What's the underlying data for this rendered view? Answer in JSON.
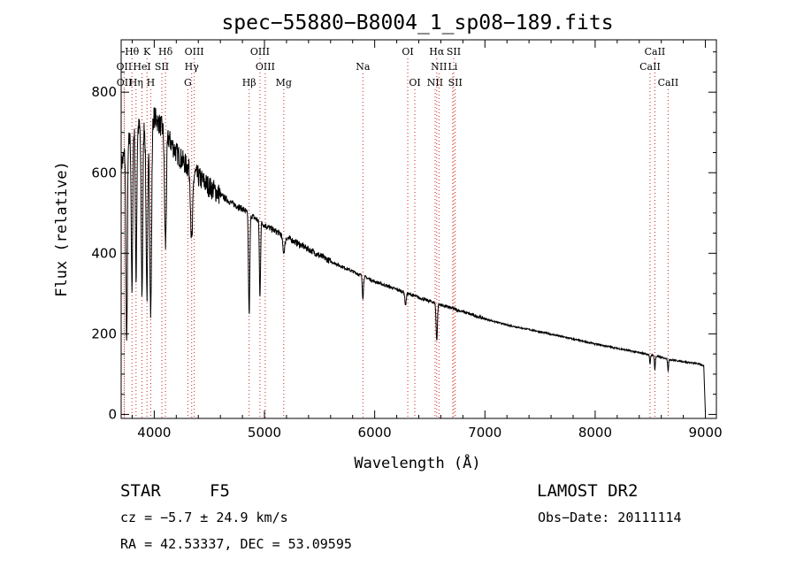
{
  "chart_data": {
    "type": "line",
    "title": "spec−55880−B8004_1_sp08−189.fits",
    "xlabel": "Wavelength (Å)",
    "ylabel": "Flux (relative)",
    "xlim": [
      3700,
      9100
    ],
    "ylim": [
      -10,
      930
    ],
    "xticks": [
      4000,
      5000,
      6000,
      7000,
      8000,
      9000
    ],
    "yticks": [
      0,
      200,
      400,
      600,
      800
    ],
    "grid": false,
    "legend": "none",
    "line_color": "#000000",
    "marker_color": "#cc2222",
    "spectrum_anchors": [
      [
        3700,
        620
      ],
      [
        3800,
        700
      ],
      [
        3900,
        720
      ],
      [
        4000,
        740
      ],
      [
        4100,
        700
      ],
      [
        4200,
        650
      ],
      [
        4300,
        615
      ],
      [
        4400,
        590
      ],
      [
        4500,
        565
      ],
      [
        4600,
        545
      ],
      [
        4700,
        525
      ],
      [
        4800,
        510
      ],
      [
        4900,
        490
      ],
      [
        5000,
        470
      ],
      [
        5200,
        440
      ],
      [
        5400,
        410
      ],
      [
        5600,
        380
      ],
      [
        5800,
        355
      ],
      [
        6000,
        330
      ],
      [
        6200,
        310
      ],
      [
        6400,
        290
      ],
      [
        6600,
        272
      ],
      [
        6800,
        255
      ],
      [
        7000,
        237
      ],
      [
        7200,
        222
      ],
      [
        7500,
        205
      ],
      [
        8000,
        175
      ],
      [
        8500,
        148
      ],
      [
        8700,
        135
      ],
      [
        8950,
        125
      ],
      [
        8985,
        120
      ],
      [
        9000,
        5
      ]
    ],
    "absorption_features": [
      [
        3750,
        500,
        6
      ],
      [
        3798,
        400,
        6
      ],
      [
        3835,
        380,
        6
      ],
      [
        3889,
        420,
        7
      ],
      [
        3934,
        430,
        8
      ],
      [
        3968,
        480,
        8
      ],
      [
        4102,
        280,
        8
      ],
      [
        4340,
        180,
        9
      ],
      [
        4861,
        250,
        6
      ],
      [
        4959,
        190,
        5
      ],
      [
        5175,
        40,
        10
      ],
      [
        5893,
        55,
        5
      ],
      [
        6280,
        30,
        6
      ],
      [
        6563,
        90,
        6
      ],
      [
        8498,
        25,
        4
      ],
      [
        8542,
        35,
        4
      ],
      [
        8662,
        30,
        4
      ]
    ],
    "line_markers": [
      {
        "label": "Hθ",
        "wavelength": 3798,
        "row": 1
      },
      {
        "label": "K",
        "wavelength": 3934,
        "row": 1
      },
      {
        "label": "Hδ",
        "wavelength": 4102,
        "row": 1
      },
      {
        "label": "OIII",
        "wavelength": 4363,
        "row": 1
      },
      {
        "label": "OIII",
        "wavelength": 4959,
        "row": 1
      },
      {
        "label": "OI",
        "wavelength": 6300,
        "row": 1
      },
      {
        "label": "Hα",
        "wavelength": 6563,
        "row": 1
      },
      {
        "label": "SII",
        "wavelength": 6717,
        "row": 1
      },
      {
        "label": "CaII",
        "wavelength": 8542,
        "row": 1
      },
      {
        "label": "OII",
        "wavelength": 3727,
        "row": 2
      },
      {
        "label": "HeI",
        "wavelength": 3889,
        "row": 2
      },
      {
        "label": "SII",
        "wavelength": 4069,
        "row": 2
      },
      {
        "label": "Hγ",
        "wavelength": 4340,
        "row": 2
      },
      {
        "label": "OIII",
        "wavelength": 5007,
        "row": 2
      },
      {
        "label": "Na",
        "wavelength": 5893,
        "row": 2
      },
      {
        "label": "NII",
        "wavelength": 6583,
        "row": 2
      },
      {
        "label": "Li",
        "wavelength": 6708,
        "row": 2
      },
      {
        "label": "CaII",
        "wavelength": 8498,
        "row": 2
      },
      {
        "label": "OII",
        "wavelength": 3729,
        "row": 3
      },
      {
        "label": "Hη",
        "wavelength": 3835,
        "row": 3
      },
      {
        "label": "H",
        "wavelength": 3968,
        "row": 3
      },
      {
        "label": "G",
        "wavelength": 4305,
        "row": 3
      },
      {
        "label": "Hβ",
        "wavelength": 4861,
        "row": 3
      },
      {
        "label": "Mg",
        "wavelength": 5175,
        "row": 3
      },
      {
        "label": "OI",
        "wavelength": 6364,
        "row": 3
      },
      {
        "label": "NII",
        "wavelength": 6548,
        "row": 3
      },
      {
        "label": "SII",
        "wavelength": 6731,
        "row": 3
      },
      {
        "label": "CaII",
        "wavelength": 8662,
        "row": 3
      }
    ]
  },
  "info": {
    "object_class": "STAR",
    "subclass": "F5",
    "survey": "LAMOST DR2",
    "cz": "cz = −5.7 ± 24.9 km/s",
    "obs_date": "Obs−Date: 20111114",
    "coords": "RA =  42.53337, DEC =  53.09595"
  }
}
